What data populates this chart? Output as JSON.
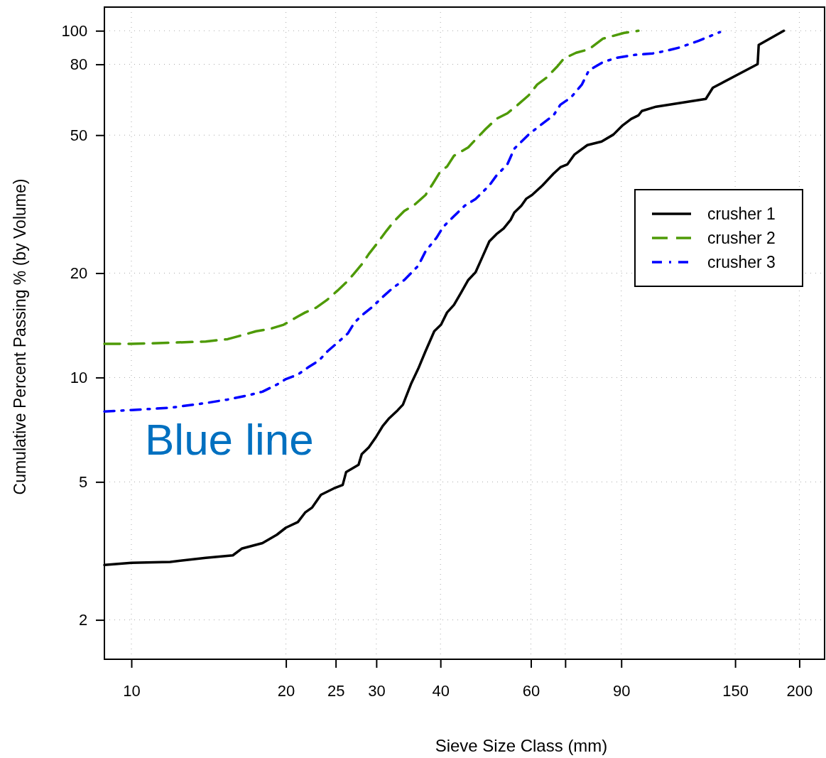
{
  "chart_data": {
    "type": "line",
    "xlabel": "Sieve Size Class (mm)",
    "ylabel": "Cumulative Percent Passing % (by Volume)",
    "log": "xy",
    "grid": true,
    "legend": "right",
    "xlim": [
      8.86,
      224
    ],
    "ylim": [
      1.54,
      117
    ],
    "xticks": [
      10,
      20,
      25,
      30,
      40,
      60,
      {
        "value": 70,
        "label": null
      },
      90,
      150,
      200
    ],
    "yticks": [
      2,
      5,
      10,
      20,
      50,
      80,
      100
    ],
    "annotations": [
      "Blue line"
    ],
    "series": [
      {
        "name": "crusher 1",
        "color": "#000000",
        "line_style": "solid",
        "x": [
          8.86,
          10,
          11.9,
          13.96,
          15.76,
          16.4,
          18.0,
          19.2,
          20,
          21.1,
          21.8,
          22.5,
          23.4,
          24.8,
          25.8,
          26.2,
          27.7,
          28.1,
          29.0,
          30.0,
          30.9,
          31.7,
          33.0,
          33.8,
          35.1,
          36.2,
          37.4,
          38.9,
          40.1,
          41.2,
          42.5,
          43.9,
          45.3,
          46.8,
          48.3,
          49.8,
          51.4,
          53.1,
          54.8,
          55.7,
          57.5,
          58.8,
          60.3,
          63.2,
          66.4,
          68.5,
          70.7,
          73.0,
          77.3,
          82.4,
          86.9,
          90.6,
          94.1,
          97.2,
          98.7,
          105.2,
          131.5,
          135.7,
          165.9,
          166.7,
          186.6
        ],
        "values": [
          2.88,
          2.92,
          2.94,
          3.02,
          3.07,
          3.21,
          3.33,
          3.52,
          3.69,
          3.83,
          4.08,
          4.22,
          4.59,
          4.79,
          4.9,
          5.34,
          5.6,
          6.01,
          6.29,
          6.76,
          7.26,
          7.6,
          8.04,
          8.35,
          9.63,
          10.6,
          11.9,
          13.6,
          14.2,
          15.4,
          16.2,
          17.6,
          19.1,
          20.1,
          22.3,
          24.7,
          25.9,
          26.9,
          28.5,
          29.9,
          31.3,
          32.8,
          33.6,
          35.8,
          38.7,
          40.4,
          41.2,
          44.0,
          46.8,
          47.9,
          50.2,
          53.4,
          55.7,
          57.0,
          58.7,
          60.4,
          63.6,
          68.5,
          80.1,
          91.0,
          100
        ]
      },
      {
        "name": "crusher 2",
        "color": "#4e9a06",
        "line_style": "dashed",
        "x": [
          8.86,
          10,
          11.9,
          13.96,
          15.4,
          16.6,
          17.5,
          18.6,
          19.8,
          21.1,
          21.8,
          22.9,
          24.0,
          25.2,
          26.4,
          27.2,
          28.1,
          29.0,
          30.0,
          31.4,
          32.4,
          34.0,
          35.7,
          37.4,
          38.6,
          39.9,
          41.2,
          42.5,
          45.3,
          47.1,
          49.0,
          51.4,
          54.0,
          56.6,
          59.4,
          61.7,
          64.3,
          67.4,
          69.6,
          73.5,
          77.8,
          82.9,
          91.2,
          97.2
        ],
        "values": [
          12.5,
          12.5,
          12.6,
          12.7,
          12.9,
          13.3,
          13.6,
          13.8,
          14.2,
          15.0,
          15.4,
          15.9,
          16.7,
          17.8,
          19.0,
          20.0,
          21.2,
          22.7,
          24.2,
          26.5,
          28.1,
          30.2,
          31.6,
          33.6,
          36.1,
          39.1,
          40.6,
          43.6,
          46.1,
          49.0,
          52.1,
          55.7,
          57.8,
          61.2,
          65.1,
          69.9,
          73.2,
          78.6,
          83.2,
          86.4,
          88.4,
          94.9,
          98.6,
          100
        ]
      },
      {
        "name": "crusher 3",
        "color": "#0000ff",
        "line_style": "dotted",
        "x": [
          8.86,
          10,
          11.9,
          13.96,
          15.4,
          16.9,
          18.0,
          19.2,
          20,
          21.1,
          22.1,
          23.2,
          24.1,
          25.2,
          26.4,
          27.2,
          28.1,
          29.5,
          30.9,
          32.4,
          34.0,
          36.2,
          37.4,
          39.3,
          40.5,
          42.5,
          44.6,
          46.8,
          49.8,
          51.4,
          54.0,
          55.7,
          59.4,
          62.3,
          66.4,
          68.5,
          71.8,
          75.4,
          77.8,
          82.9,
          88.3,
          95.6,
          103.6,
          110.4,
          117.6,
          127.4,
          140.1
        ],
        "values": [
          7.98,
          8.06,
          8.18,
          8.44,
          8.64,
          8.89,
          9.1,
          9.54,
          9.9,
          10.2,
          10.7,
          11.2,
          11.9,
          12.6,
          13.4,
          14.4,
          15.1,
          16.0,
          17.1,
          18.2,
          19.1,
          21.0,
          23.1,
          25.3,
          27.2,
          29.2,
          31.3,
          32.7,
          35.8,
          38.2,
          41.2,
          45.7,
          50.2,
          53.1,
          57.0,
          61.2,
          64.2,
          69.9,
          76.8,
          81.2,
          83.6,
          85.2,
          86.0,
          87.6,
          89.7,
          93.6,
          99.1
        ]
      }
    ]
  }
}
